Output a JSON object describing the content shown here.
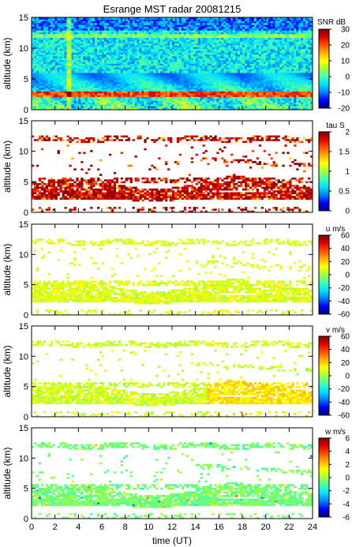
{
  "chart_data": [
    {
      "type": "heatmap",
      "title": "Esrange MST radar 20081215",
      "ylabel": "altitude (km)",
      "xlabel": "",
      "xlim": [
        0,
        24
      ],
      "ylim": [
        0,
        15
      ],
      "yticks": [
        0,
        5,
        10,
        15
      ],
      "xticks": [
        0,
        2,
        4,
        6,
        8,
        10,
        12,
        14,
        16,
        18,
        20,
        22,
        24
      ],
      "colorbar": {
        "label": "SNR dB",
        "range": [
          -20,
          30
        ],
        "ticks": [
          -20,
          -10,
          0,
          10,
          20,
          30
        ]
      },
      "features": {
        "background": "dense",
        "strong_layer_km": [
          2.0,
          3.0
        ]
      }
    },
    {
      "type": "heatmap",
      "title": "",
      "ylabel": "altitude (km)",
      "xlabel": "",
      "xlim": [
        0,
        24
      ],
      "ylim": [
        0,
        15
      ],
      "yticks": [
        0,
        5,
        10,
        15
      ],
      "xticks": [
        0,
        2,
        4,
        6,
        8,
        10,
        12,
        14,
        16,
        18,
        20,
        22,
        24
      ],
      "colorbar": {
        "label": "tau S",
        "range": [
          0,
          2
        ],
        "ticks": [
          0,
          0.5,
          1,
          1.5,
          2
        ]
      },
      "features": {
        "background": "sparse",
        "dominant_value": 2
      }
    },
    {
      "type": "heatmap",
      "title": "",
      "ylabel": "altitude (km)",
      "xlabel": "",
      "xlim": [
        0,
        24
      ],
      "ylim": [
        0,
        15
      ],
      "yticks": [
        0,
        5,
        10,
        15
      ],
      "xticks": [
        0,
        2,
        4,
        6,
        8,
        10,
        12,
        14,
        16,
        18,
        20,
        22,
        24
      ],
      "colorbar": {
        "label": "u m/s",
        "range": [
          -60,
          60
        ],
        "ticks": [
          -60,
          -40,
          -20,
          0,
          20,
          40,
          60
        ]
      },
      "features": {
        "background": "sparse",
        "dominant_value": 8
      }
    },
    {
      "type": "heatmap",
      "title": "",
      "ylabel": "altitude (km)",
      "xlabel": "",
      "xlim": [
        0,
        24
      ],
      "ylim": [
        0,
        15
      ],
      "yticks": [
        0,
        5,
        10,
        15
      ],
      "xticks": [
        0,
        2,
        4,
        6,
        8,
        10,
        12,
        14,
        16,
        18,
        20,
        22,
        24
      ],
      "colorbar": {
        "label": "v m/s",
        "range": [
          -60,
          60
        ],
        "ticks": [
          -60,
          -40,
          -20,
          0,
          20,
          40,
          60
        ]
      },
      "features": {
        "background": "sparse",
        "dominant_value": 6
      }
    },
    {
      "type": "heatmap",
      "title": "",
      "ylabel": "altitude (km)",
      "xlabel": "time (UT)",
      "xlim": [
        0,
        24
      ],
      "ylim": [
        0,
        15
      ],
      "yticks": [
        0,
        5,
        10,
        15
      ],
      "xticks": [
        0,
        2,
        4,
        6,
        8,
        10,
        12,
        14,
        16,
        18,
        20,
        22,
        24
      ],
      "colorbar": {
        "label": "w m/s",
        "range": [
          -6,
          6
        ],
        "ticks": [
          -6,
          -4,
          -2,
          0,
          2,
          4,
          6
        ]
      },
      "features": {
        "background": "sparse",
        "dominant_value": -0.5
      }
    }
  ]
}
